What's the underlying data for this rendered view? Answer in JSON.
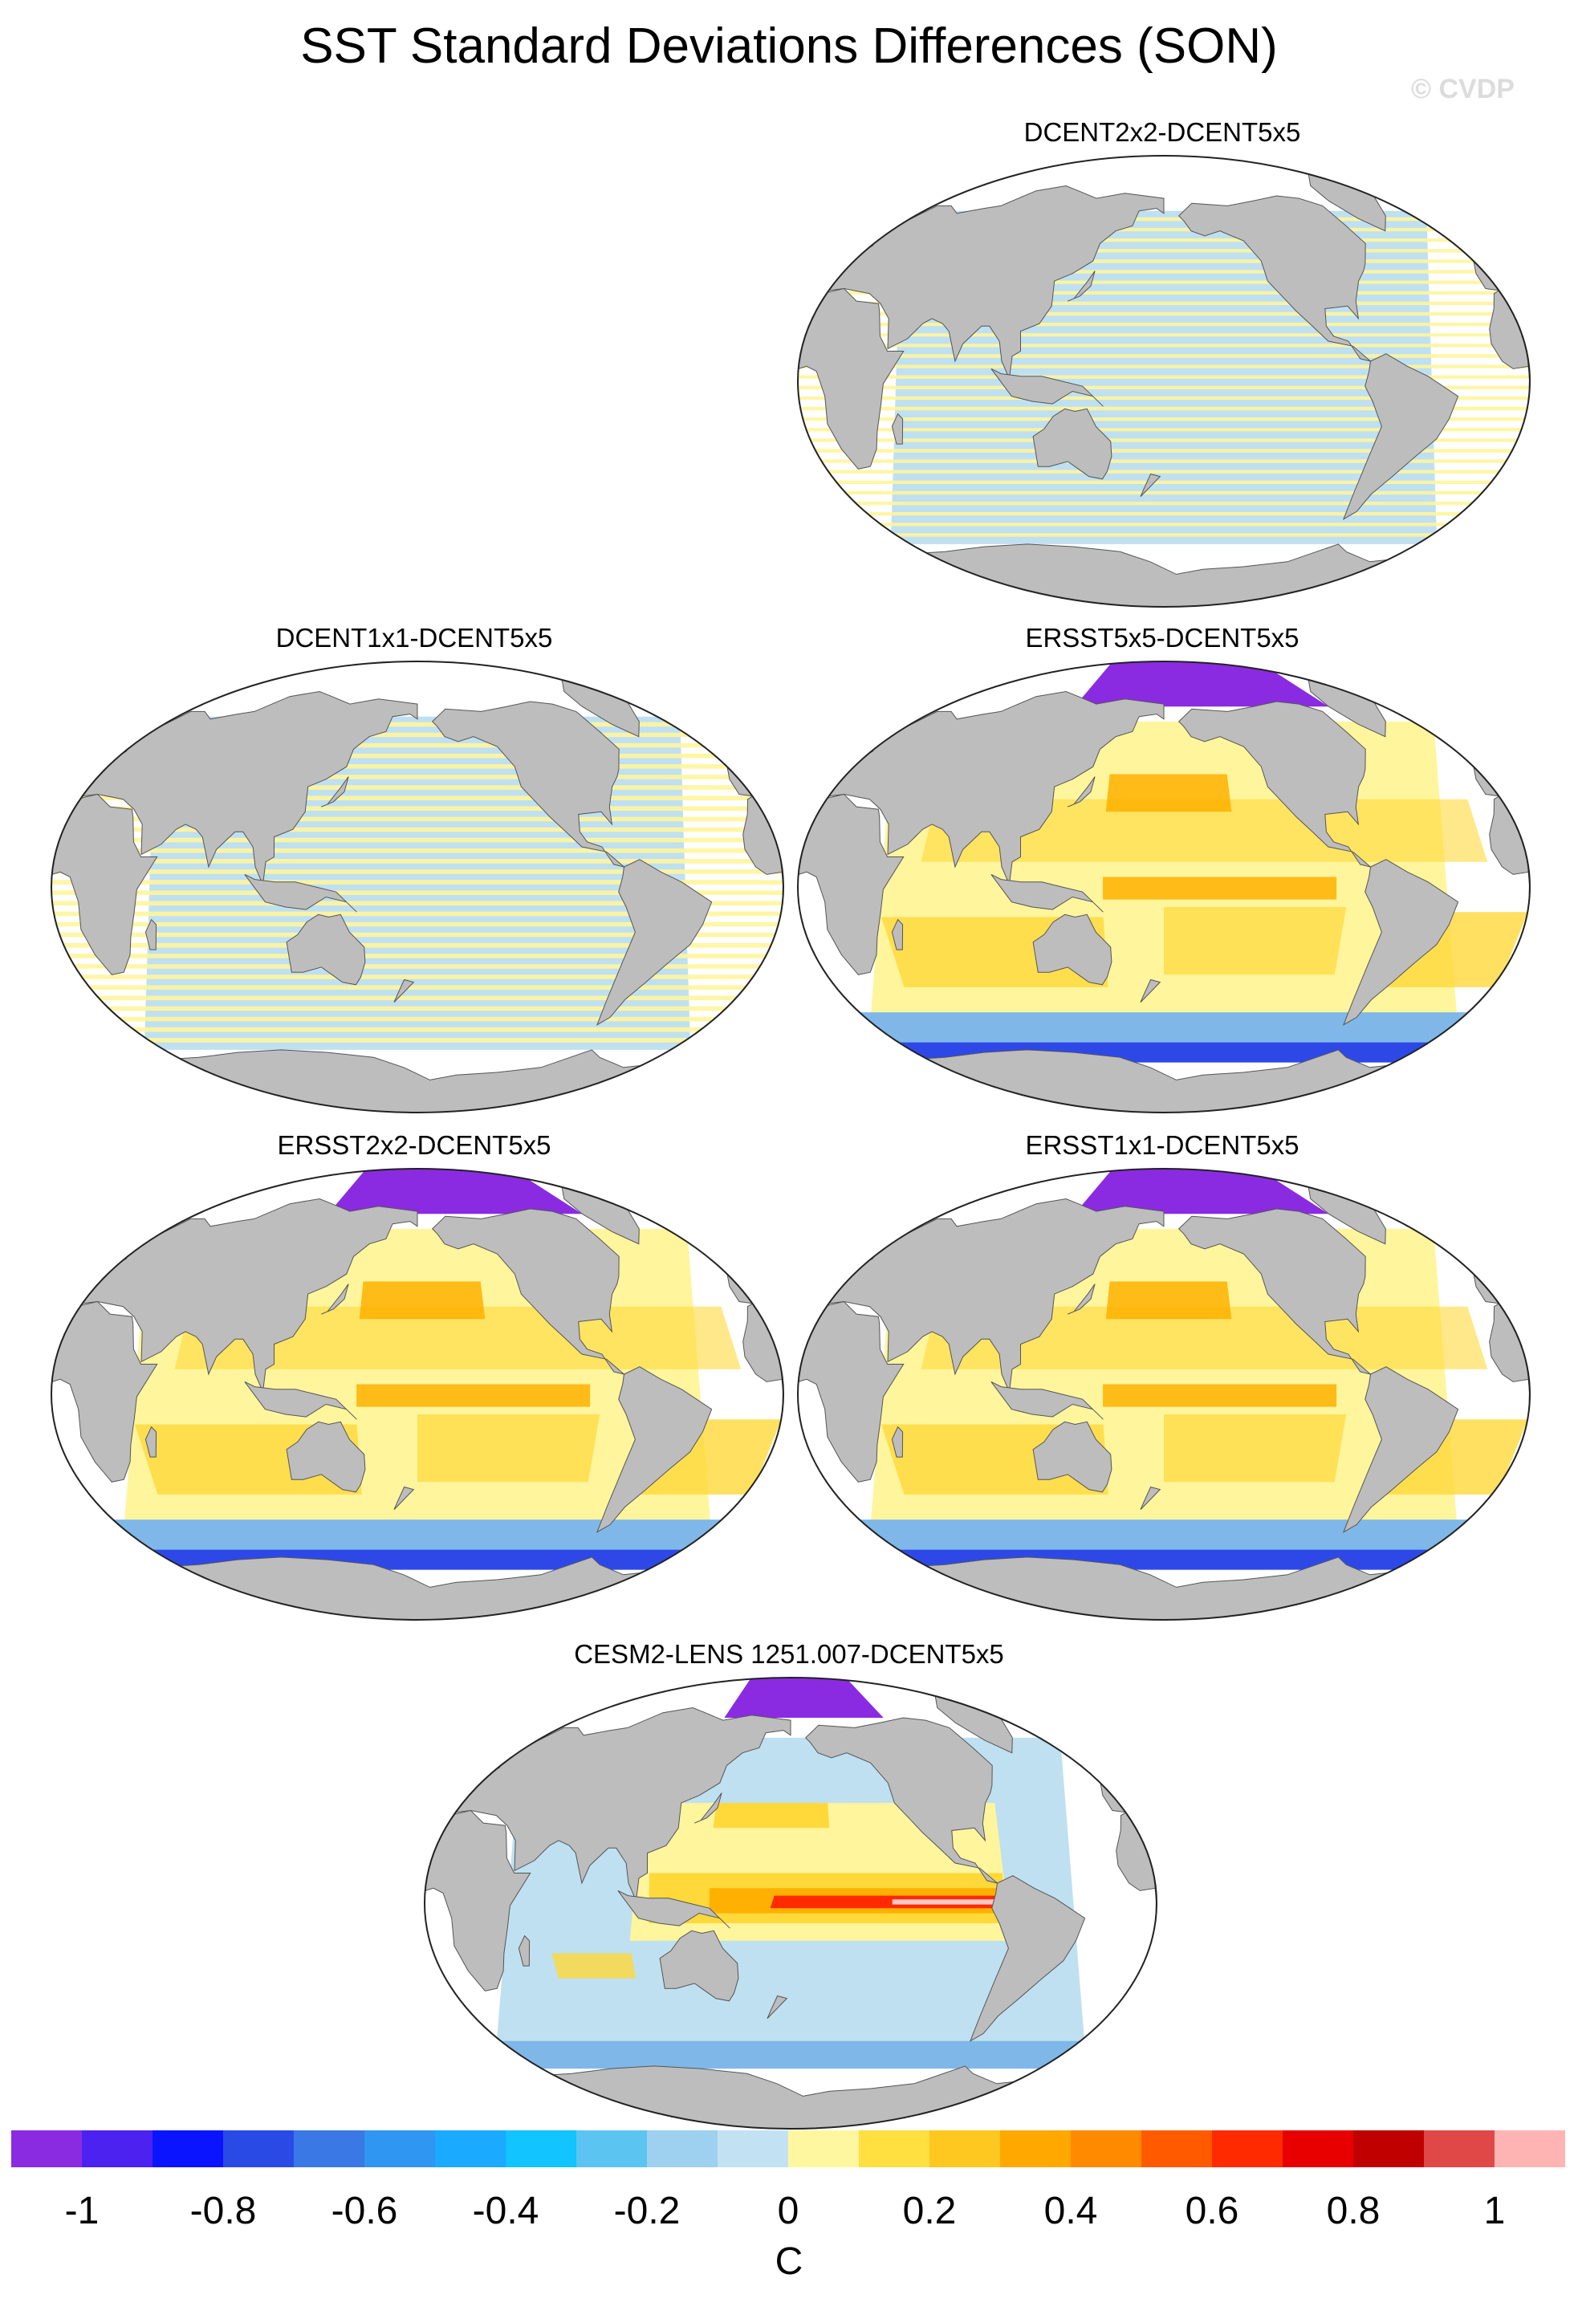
{
  "title": "SST Standard Deviations Differences (SON)",
  "watermark": "© CVDP",
  "panels": [
    {
      "label": "DCENT2x2-DCENT5x5",
      "style": "stripes"
    },
    {
      "label": "DCENT1x1-DCENT5x5",
      "style": "stripes"
    },
    {
      "label": "ERSST5x5-DCENT5x5",
      "style": "ersst"
    },
    {
      "label": "ERSST2x2-DCENT5x5",
      "style": "ersst"
    },
    {
      "label": "ERSST1x1-DCENT5x5",
      "style": "ersst"
    },
    {
      "label": "CESM2-LENS 1251.007-DCENT5x5",
      "style": "cesm"
    }
  ],
  "colorbar": {
    "colors": [
      "#8a2be2",
      "#4b22f0",
      "#0a14ff",
      "#2a4ae6",
      "#3a78e6",
      "#2f96f2",
      "#1aaaff",
      "#12c4ff",
      "#5cc4f0",
      "#9ed0ef",
      "#c2e2f4",
      "#fff7a0",
      "#ffe040",
      "#ffc820",
      "#ffa800",
      "#ff8a00",
      "#ff5a00",
      "#ff2a00",
      "#e80000",
      "#c00000",
      "#e04848",
      "#ffb4b4"
    ],
    "tick_labels": [
      "-1",
      "-0.8",
      "-0.6",
      "-0.4",
      "-0.2",
      "0",
      "0.2",
      "0.4",
      "0.6",
      "0.8",
      "1"
    ],
    "unit": "C"
  },
  "palette": {
    "land": "#bdbdbd",
    "neg_light": "#bfe0f0",
    "pos_light": "#fff59c",
    "pos_mid": "#ffd83a",
    "pos_strong": "#ffb000",
    "neg_mid": "#7fb8e8",
    "neg_strong": "#2e48e8",
    "deep_purple": "#8a2be2",
    "red": "#ff2a00",
    "dark_red": "#c00000",
    "pale_red": "#ffc8c8"
  }
}
